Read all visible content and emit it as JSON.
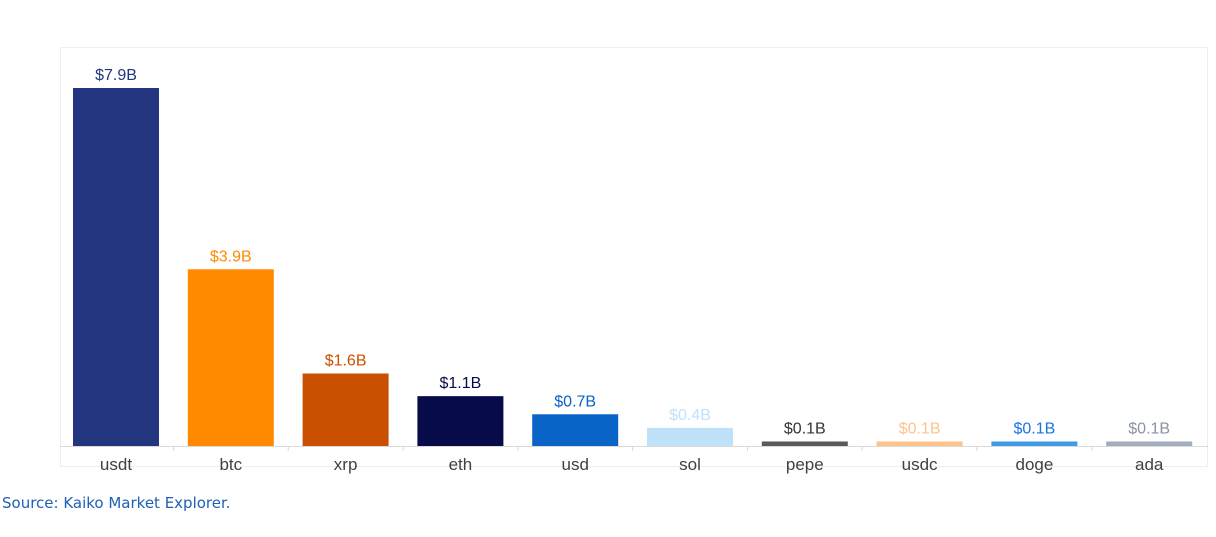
{
  "chart_data": {
    "type": "bar",
    "categories": [
      "usdt",
      "btc",
      "xrp",
      "eth",
      "usd",
      "sol",
      "pepe",
      "usdc",
      "doge",
      "ada"
    ],
    "values": [
      7.9,
      3.9,
      1.6,
      1.1,
      0.7,
      0.4,
      0.1,
      0.1,
      0.1,
      0.1
    ],
    "labels": [
      "$7.9B",
      "$3.9B",
      "$1.6B",
      "$1.1B",
      "$0.7B",
      "$0.4B",
      "$0.1B",
      "$0.1B",
      "$0.1B",
      "$0.1B"
    ],
    "colors": [
      "#24357f",
      "#ff8a00",
      "#c95000",
      "#070b4a",
      "#0a63c6",
      "#bfe2fa",
      "#5a5a5a",
      "#ffc38a",
      "#3d9be8",
      "#a3adbd"
    ],
    "label_colors": [
      "#24357f",
      "#ff8a00",
      "#c95000",
      "#070b4a",
      "#0a63c6",
      "#bfe2fa",
      "#333333",
      "#ffc38a",
      "#1a73e8",
      "#8a93a3"
    ],
    "ylim": [
      0,
      7.9
    ],
    "grid": false,
    "title": "",
    "xlabel": "",
    "ylabel": ""
  },
  "source": "Source: Kaiko Market Explorer."
}
